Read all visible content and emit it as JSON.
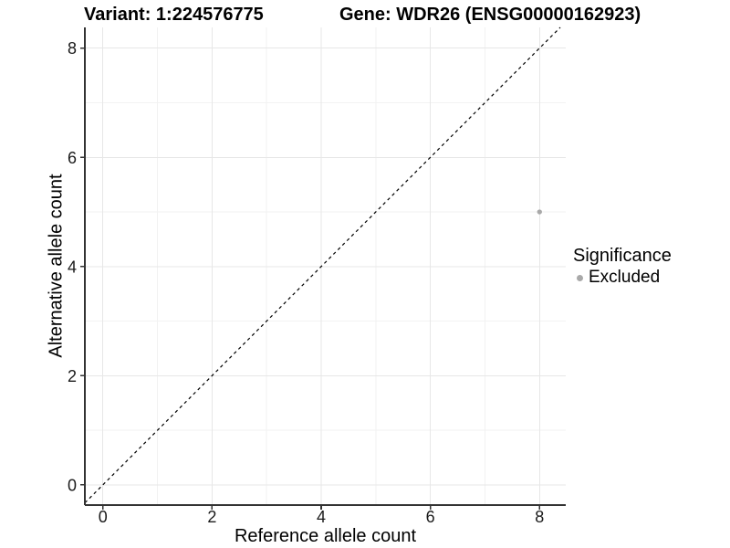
{
  "chart_data": {
    "type": "scatter",
    "titles": {
      "left": "Variant: 1:224576775",
      "right": "Gene: WDR26 (ENSG00000162923)"
    },
    "xlabel": "Reference allele count",
    "ylabel": "Alternative allele count",
    "xlim": [
      -0.33,
      8.48
    ],
    "ylim": [
      -0.37,
      8.38
    ],
    "x_ticks": [
      0,
      2,
      4,
      6,
      8
    ],
    "y_ticks": [
      0,
      2,
      4,
      6,
      8
    ],
    "x_minor_gridlines": [
      1,
      3,
      5,
      7
    ],
    "y_minor_gridlines": [
      1,
      3,
      5,
      7
    ],
    "grid": true,
    "reference_line": {
      "kind": "identity y=x",
      "style": "dashed",
      "color": "#000000"
    },
    "series": [
      {
        "name": "Excluded",
        "color": "#a9a9a9",
        "points": [
          {
            "x": 8,
            "y": 5
          }
        ]
      }
    ],
    "legend": {
      "title": "Significance",
      "position": "right",
      "entries": [
        {
          "label": "Excluded",
          "color": "#a9a9a9"
        }
      ]
    },
    "colors": {
      "background": "#ffffff",
      "grid_major": "#e7e7e7",
      "grid_minor": "#f2f2f2",
      "axis_line": "#333333",
      "tick_text": "#1a1a1a",
      "title_text": "#000000"
    }
  }
}
